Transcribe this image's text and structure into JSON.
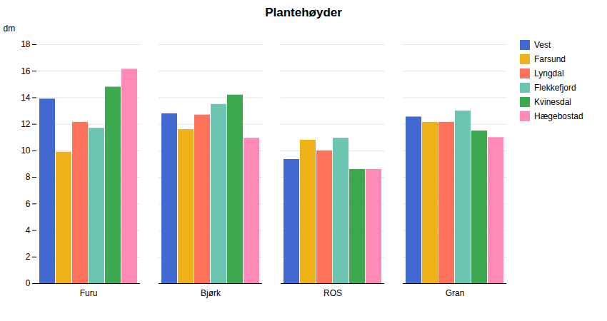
{
  "chart_data": {
    "type": "bar",
    "title": "Plantehøyder",
    "ylabel": "dm",
    "categories": [
      "Furu",
      "Bjørk",
      "ROS",
      "Gran"
    ],
    "series": [
      {
        "name": "Vest",
        "values": [
          13.9,
          12.8,
          9.35,
          12.55
        ]
      },
      {
        "name": "Farsund",
        "values": [
          9.9,
          11.6,
          10.8,
          12.15
        ]
      },
      {
        "name": "Lyngdal",
        "values": [
          12.15,
          12.7,
          10.0,
          12.15
        ]
      },
      {
        "name": "Flekkefjord",
        "values": [
          11.7,
          13.5,
          10.95,
          13.0
        ]
      },
      {
        "name": "Kvinesdal",
        "values": [
          14.8,
          14.2,
          8.6,
          11.5
        ]
      },
      {
        "name": "Hægebostad",
        "values": [
          16.15,
          10.95,
          8.6,
          11.0
        ]
      }
    ],
    "ylim": [
      0,
      18
    ],
    "yticks": [
      0,
      2,
      4,
      6,
      8,
      10,
      12,
      14,
      16,
      18
    ],
    "grid": true,
    "legend": "right"
  }
}
